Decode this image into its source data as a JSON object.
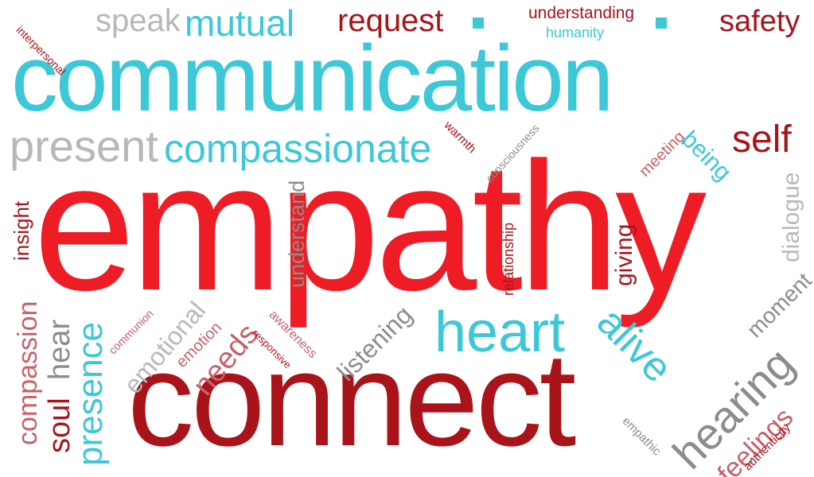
{
  "colors": {
    "teal": "#3cc8d6",
    "red": "#ee1c24",
    "darkred": "#a9141b",
    "rose": "#c9606a",
    "gray": "#8c8c8c",
    "lightgray": "#b8b8b8",
    "background": "#ffffff"
  },
  "words": {
    "empathy": "empathy",
    "connect": "connect",
    "communication": "communication",
    "compassionate": "compassionate",
    "present": "present",
    "heart": "heart",
    "self": "self",
    "safety": "safety",
    "request": "request",
    "mutual": "mutual",
    "speak": "speak",
    "understanding": "understanding",
    "humanity": "humanity",
    "interpersonal": "interpersonal",
    "warmth": "warmth",
    "consciousness": "consciousness",
    "meeting": "meeting",
    "being": "being",
    "dialogue": "dialogue",
    "insight": "insight",
    "understand": "understand",
    "relationship": "relationship",
    "giving": "giving",
    "moment": "moment",
    "compassion": "compassion",
    "hear": "hear",
    "soul": "soul",
    "presence": "presence",
    "communion": "communion",
    "emotional": "emotional",
    "emotion": "emotion",
    "needs": "needs",
    "responsive": "responsive",
    "awareness": "awareness",
    "listening": "listening",
    "alive": "alive",
    "hearing": "hearing",
    "feelings": "feelings",
    "empathic": "empathic",
    "authenticity": "authenticity"
  }
}
